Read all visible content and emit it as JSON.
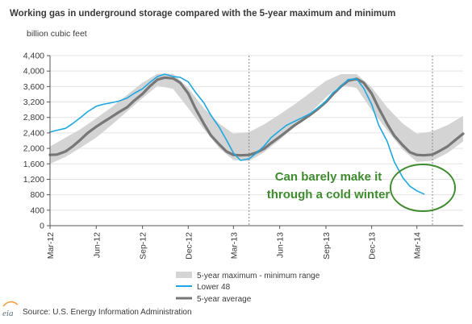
{
  "chart_data": {
    "type": "line",
    "title": "Working gas in underground storage compared with the 5-year maximum and minimum",
    "ylabel": "billion cubic feet",
    "ylim": [
      0,
      4400
    ],
    "yticks": [
      0,
      400,
      800,
      1200,
      1600,
      2000,
      2400,
      2800,
      3200,
      3600,
      4000,
      4400
    ],
    "ytick_labels": [
      "0",
      "400",
      "800",
      "1,200",
      "1,600",
      "2,000",
      "2,400",
      "2,800",
      "3,200",
      "3,600",
      "4,000",
      "4,400"
    ],
    "xlim": [
      "2012-03-01",
      "2014-06-01"
    ],
    "xtick_values": [
      "2012-03-01",
      "2012-06-01",
      "2012-09-01",
      "2012-12-01",
      "2013-03-01",
      "2013-06-01",
      "2013-09-01",
      "2013-12-01",
      "2014-03-01"
    ],
    "xtick_labels": [
      "Mar-12",
      "Jun-12",
      "Sep-12",
      "Dec-12",
      "Mar-13",
      "Jun-13",
      "Sep-13",
      "Dec-13",
      "Mar-14"
    ],
    "vertical_markers": [
      "2013-04-01",
      "2014-04-01"
    ],
    "grid": true,
    "legend_position": "bottom-center",
    "series": [
      {
        "name": "5-year maximum - minimum range",
        "kind": "band",
        "color": "#d4d4d4",
        "x": [
          "2012-03-01",
          "2012-04-01",
          "2012-05-01",
          "2012-06-01",
          "2012-07-01",
          "2012-08-01",
          "2012-09-01",
          "2012-10-01",
          "2012-11-01",
          "2012-12-01",
          "2013-01-01",
          "2013-02-01",
          "2013-03-01",
          "2013-04-01",
          "2013-05-01",
          "2013-06-01",
          "2013-07-01",
          "2013-08-01",
          "2013-09-01",
          "2013-10-01",
          "2013-11-01",
          "2013-12-01",
          "2014-01-01",
          "2014-02-01",
          "2014-03-01",
          "2014-04-01",
          "2014-05-01",
          "2014-06-01"
        ],
        "upper": [
          2050,
          2280,
          2500,
          2780,
          3060,
          3380,
          3700,
          3930,
          3930,
          3560,
          3040,
          2640,
          2380,
          2420,
          2620,
          2880,
          3140,
          3440,
          3750,
          3920,
          3920,
          3580,
          3060,
          2640,
          2380,
          2440,
          2600,
          2840
        ],
        "lower": [
          1600,
          1780,
          2020,
          2280,
          2600,
          2950,
          3300,
          3620,
          3540,
          3040,
          2500,
          2000,
          1700,
          1670,
          1900,
          2220,
          2560,
          2920,
          3320,
          3640,
          3560,
          2990,
          2470,
          1960,
          1650,
          1680,
          1880,
          2180
        ]
      },
      {
        "name": "Lower 48",
        "kind": "line",
        "color": "#1ea7e1",
        "x": [
          "2012-03-01",
          "2012-03-15",
          "2012-04-01",
          "2012-04-15",
          "2012-05-01",
          "2012-05-15",
          "2012-06-01",
          "2012-06-15",
          "2012-07-01",
          "2012-07-15",
          "2012-08-01",
          "2012-08-15",
          "2012-09-01",
          "2012-09-15",
          "2012-10-01",
          "2012-10-15",
          "2012-11-01",
          "2012-11-15",
          "2012-12-01",
          "2012-12-15",
          "2013-01-01",
          "2013-01-15",
          "2013-02-01",
          "2013-02-15",
          "2013-03-01",
          "2013-03-15",
          "2013-04-01",
          "2013-04-15",
          "2013-05-01",
          "2013-05-15",
          "2013-06-01",
          "2013-06-15",
          "2013-07-01",
          "2013-07-15",
          "2013-08-01",
          "2013-08-15",
          "2013-09-01",
          "2013-09-15",
          "2013-10-01",
          "2013-10-15",
          "2013-11-01",
          "2013-11-15",
          "2013-12-01",
          "2013-12-15",
          "2014-01-01",
          "2014-01-15",
          "2014-02-01",
          "2014-02-15",
          "2014-03-01",
          "2014-03-15"
        ],
        "values": [
          2420,
          2470,
          2520,
          2640,
          2800,
          2950,
          3090,
          3140,
          3180,
          3220,
          3300,
          3420,
          3540,
          3700,
          3860,
          3920,
          3860,
          3840,
          3720,
          3460,
          3180,
          2860,
          2540,
          2220,
          1880,
          1690,
          1730,
          1870,
          2060,
          2280,
          2460,
          2600,
          2700,
          2790,
          2900,
          3040,
          3220,
          3440,
          3600,
          3780,
          3800,
          3560,
          3140,
          2600,
          2180,
          1650,
          1240,
          1020,
          900,
          820
        ]
      },
      {
        "name": "5-year average",
        "kind": "line",
        "color": "#777777",
        "x": [
          "2012-03-01",
          "2012-03-15",
          "2012-04-01",
          "2012-04-15",
          "2012-05-01",
          "2012-05-15",
          "2012-06-01",
          "2012-06-15",
          "2012-07-01",
          "2012-07-15",
          "2012-08-01",
          "2012-08-15",
          "2012-09-01",
          "2012-09-15",
          "2012-10-01",
          "2012-10-15",
          "2012-11-01",
          "2012-11-15",
          "2012-12-01",
          "2012-12-15",
          "2013-01-01",
          "2013-01-15",
          "2013-02-01",
          "2013-02-15",
          "2013-03-01",
          "2013-03-15",
          "2013-04-01",
          "2013-04-15",
          "2013-05-01",
          "2013-05-15",
          "2013-06-01",
          "2013-06-15",
          "2013-07-01",
          "2013-07-15",
          "2013-08-01",
          "2013-08-15",
          "2013-09-01",
          "2013-09-15",
          "2013-10-01",
          "2013-10-15",
          "2013-11-01",
          "2013-11-15",
          "2013-12-01",
          "2013-12-15",
          "2014-01-01",
          "2014-01-15",
          "2014-02-01",
          "2014-02-15",
          "2014-03-01",
          "2014-03-15",
          "2014-04-01",
          "2014-04-15",
          "2014-05-01",
          "2014-05-15",
          "2014-06-01"
        ],
        "values": [
          1830,
          1840,
          1920,
          2050,
          2230,
          2400,
          2560,
          2680,
          2810,
          2930,
          3060,
          3230,
          3410,
          3600,
          3780,
          3830,
          3810,
          3700,
          3420,
          3040,
          2640,
          2340,
          2100,
          1920,
          1830,
          1820,
          1830,
          1890,
          1990,
          2140,
          2300,
          2440,
          2600,
          2720,
          2870,
          3010,
          3200,
          3400,
          3600,
          3750,
          3800,
          3700,
          3420,
          3040,
          2630,
          2330,
          2080,
          1900,
          1830,
          1820,
          1840,
          1930,
          2050,
          2200,
          2380
        ]
      }
    ],
    "annotations": [
      {
        "text_lines": [
          "Can barely make it",
          "through a cold winter"
        ],
        "color": "#3f8b2f",
        "target_date": "2014-03-01",
        "target_value": 850
      }
    ],
    "source": "Source:  U.S. Energy Information Administration",
    "logo_text": "eia"
  }
}
